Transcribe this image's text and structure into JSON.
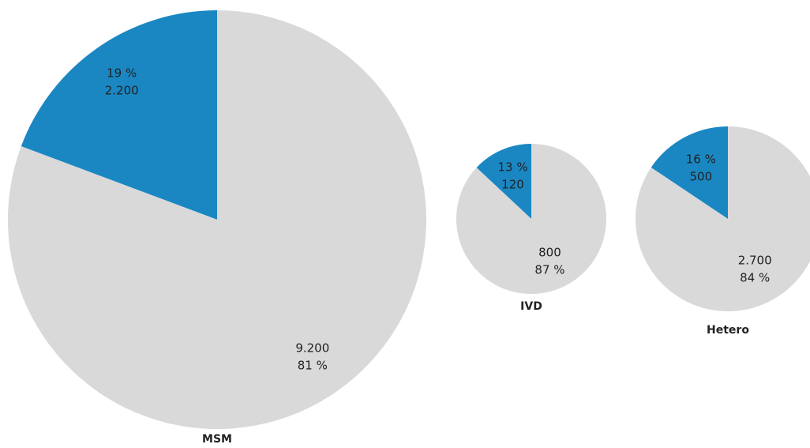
{
  "chart_data": [
    {
      "type": "pie",
      "title": "MSM",
      "values": [
        2200,
        9200
      ],
      "value_labels": [
        "2.200",
        "9.200"
      ],
      "shares": [
        19,
        81
      ],
      "share_labels": [
        "19 %",
        "81 %"
      ],
      "colors": [
        "#1a87c2",
        "#d9d9d9"
      ]
    },
    {
      "type": "pie",
      "title": "IVD",
      "values": [
        120,
        800
      ],
      "value_labels": [
        "120",
        "800"
      ],
      "shares": [
        13,
        87
      ],
      "share_labels": [
        "13 %",
        "87 %"
      ],
      "colors": [
        "#1a87c2",
        "#d9d9d9"
      ]
    },
    {
      "type": "pie",
      "title": "Hetero",
      "values": [
        500,
        2700
      ],
      "value_labels": [
        "500",
        "2.700"
      ],
      "shares": [
        16,
        84
      ],
      "share_labels": [
        "16 %",
        "84 %"
      ],
      "colors": [
        "#1a87c2",
        "#d9d9d9"
      ]
    }
  ]
}
